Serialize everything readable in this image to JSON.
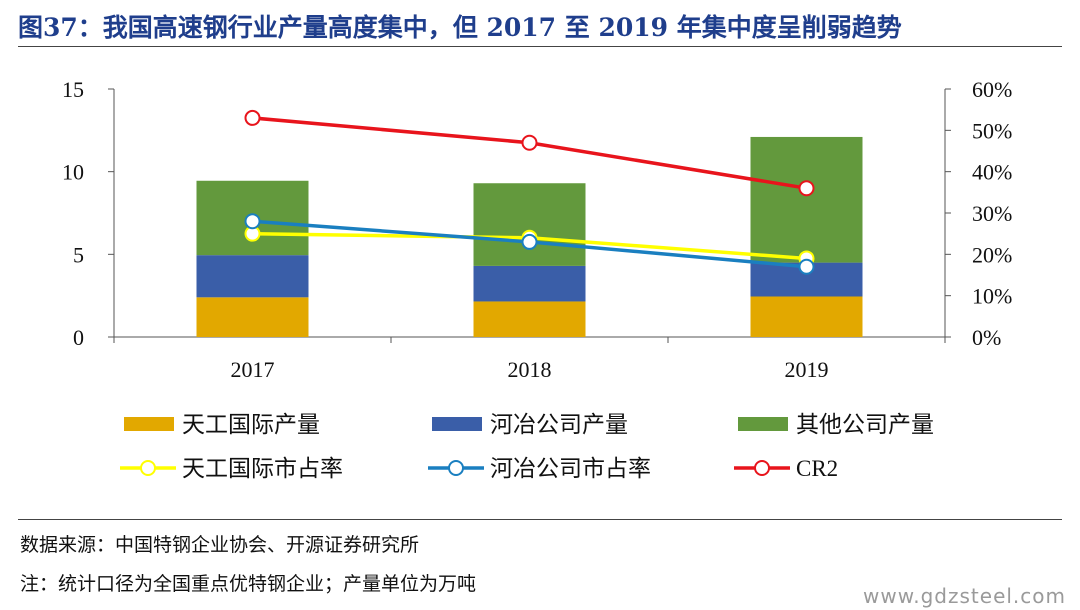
{
  "header": {
    "title": "图37：我国高速钢行业产量高度集中，但 2017 至 2019 年集中度呈削弱趋势"
  },
  "chart_data": {
    "type": "bar",
    "stacked": true,
    "categories": [
      "2017",
      "2018",
      "2019"
    ],
    "series": [
      {
        "name": "天工国际产量",
        "type": "bar",
        "axis": "left",
        "color": "#e2a800",
        "values": [
          2.4,
          2.15,
          2.45
        ]
      },
      {
        "name": "河冶公司产量",
        "type": "bar",
        "axis": "left",
        "color": "#3a5ea8",
        "values": [
          2.55,
          2.15,
          2.05
        ]
      },
      {
        "name": "其他公司产量",
        "type": "bar",
        "axis": "left",
        "color": "#63993d",
        "values": [
          4.5,
          5.0,
          7.6
        ]
      },
      {
        "name": "天工国际市占率",
        "type": "line",
        "axis": "right",
        "color": "#ffff00",
        "values": [
          25.0,
          24.0,
          19.0
        ]
      },
      {
        "name": "河冶公司市占率",
        "type": "line",
        "axis": "right",
        "color": "#1a7fc0",
        "values": [
          28.0,
          23.0,
          17.0
        ]
      },
      {
        "name": "CR2",
        "type": "line",
        "axis": "right",
        "color": "#e8141c",
        "values": [
          53.0,
          47.0,
          36.0
        ]
      }
    ],
    "y_left": {
      "min": 0,
      "max": 15,
      "ticks": [
        "0",
        "5",
        "10",
        "15"
      ]
    },
    "y_right": {
      "min": 0,
      "max": 60,
      "ticks": [
        "0%",
        "10%",
        "20%",
        "30%",
        "40%",
        "50%",
        "60%"
      ]
    },
    "grid": false,
    "legend_position": "bottom"
  },
  "footer": {
    "source": "数据来源：中国特钢企业协会、开源证券研究所",
    "note": "注：统计口径为全国重点优特钢企业；产量单位为万吨",
    "watermark": "www.gdzsteel.com"
  }
}
